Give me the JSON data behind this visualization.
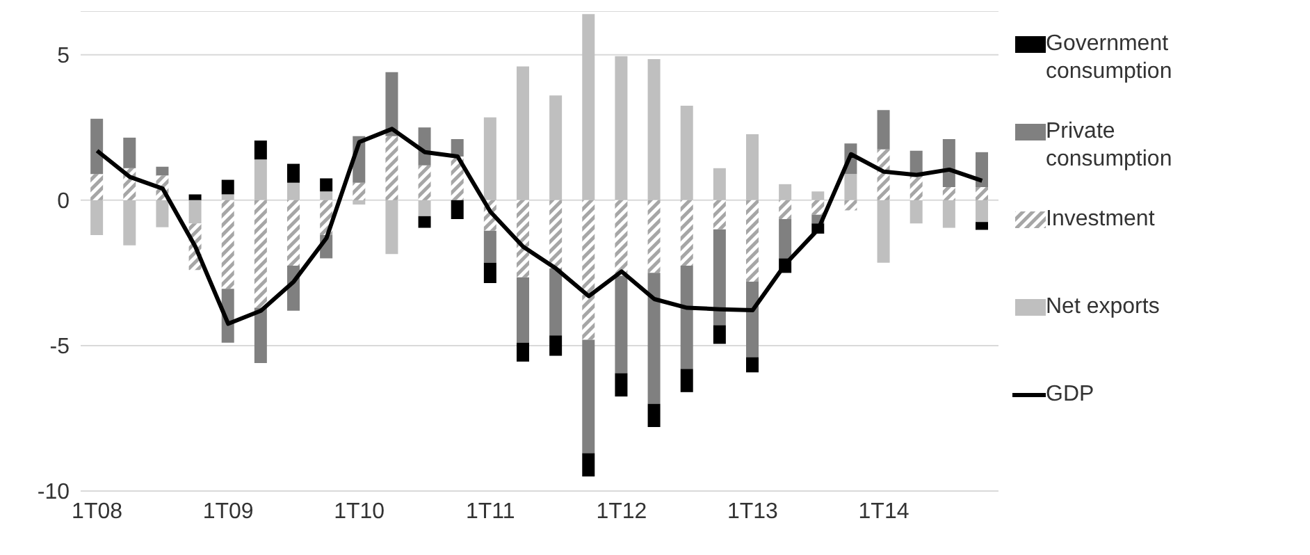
{
  "chart_data": {
    "type": "bar",
    "stacked": true,
    "categories": [
      "1T08",
      null,
      null,
      null,
      "1T09",
      null,
      null,
      null,
      "1T10",
      null,
      null,
      null,
      "1T11",
      null,
      null,
      null,
      "1T12",
      null,
      null,
      null,
      "1T13",
      null,
      null,
      null,
      "1T14",
      null,
      null,
      null
    ],
    "series": [
      {
        "name": "Net exports",
        "color": "#bfbfbf",
        "values": [
          -1.2,
          -1.55,
          -0.93,
          -0.8,
          0.2,
          1.4,
          0.6,
          0.3,
          -0.15,
          -1.85,
          -0.55,
          0,
          2.85,
          4.6,
          3.6,
          6.4,
          4.95,
          4.85,
          3.25,
          1.1,
          2.27,
          0.55,
          0.3,
          0.9,
          -2.15,
          -0.8,
          -0.95,
          -0.75
        ]
      },
      {
        "name": "Investment",
        "color": "#a6a6a6",
        "values": [
          0.9,
          1.1,
          0.85,
          -1.6,
          -3.05,
          -3.7,
          -2.25,
          -1.2,
          0.6,
          2.2,
          1.2,
          1.5,
          -1.05,
          -2.65,
          -2.35,
          -4.8,
          -2.6,
          -2.5,
          -2.25,
          -1.0,
          -2.8,
          -0.65,
          -0.5,
          -0.35,
          1.75,
          0.8,
          0.45,
          0.45
        ]
      },
      {
        "name": "Private consumption",
        "color": "#808080",
        "values": [
          1.9,
          1.05,
          0.3,
          0,
          -1.85,
          -1.9,
          -1.55,
          -0.8,
          1.6,
          2.2,
          1.3,
          0.6,
          -1.1,
          -2.25,
          -2.3,
          -3.9,
          -3.35,
          -4.5,
          -3.55,
          -3.3,
          -2.6,
          -1.35,
          -0.3,
          1.05,
          1.35,
          0.9,
          1.65,
          1.2
        ]
      },
      {
        "name": "Government consumption",
        "color": "#000000",
        "values": [
          0,
          0,
          0,
          0.2,
          0.5,
          0.65,
          0.65,
          0.45,
          0,
          0,
          -0.4,
          -0.65,
          -0.7,
          -0.65,
          -0.7,
          -0.8,
          -0.8,
          -0.8,
          -0.8,
          -0.64,
          -0.52,
          -0.5,
          -0.35,
          0,
          0,
          0,
          0,
          -0.27
        ]
      },
      {
        "name": "GDP",
        "type": "line",
        "color": "#000000",
        "values": [
          1.7,
          0.8,
          0.4,
          -1.6,
          -4.25,
          -3.8,
          -2.8,
          -1.3,
          2.0,
          2.45,
          1.65,
          1.5,
          -0.4,
          -1.6,
          -2.35,
          -3.3,
          -2.45,
          -3.4,
          -3.7,
          -3.75,
          -3.78,
          -2.2,
          -1.0,
          1.58,
          0.98,
          0.87,
          1.05,
          0.67
        ]
      }
    ],
    "ylim": [
      -10,
      6.5
    ],
    "yticks": [
      -10,
      -5,
      0,
      5
    ],
    "grid": "y",
    "legend": "right"
  }
}
